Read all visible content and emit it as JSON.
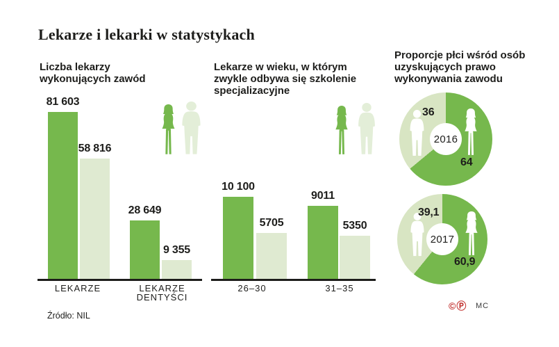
{
  "page": {
    "title": "Lekarze i lekarki w statystykach",
    "source": "Źródło: NIL",
    "copyright_mark": "©",
    "reprint_mark": "Ⓟ",
    "credit": "MC"
  },
  "sections": {
    "chart1_heading": "Liczba lekarzy\nwykonujących zawód",
    "chart2_heading": "Lekarze w wieku, w którym\nzwykle odbywa się szkolenie\nspecjalizacyjne",
    "chart3_heading": "Proporcje płci wśród osób\nuzyskujących prawo\nwykonywania zawodu"
  },
  "colors": {
    "dark_green": "#76b84d",
    "light_green": "#dfead1",
    "donut_light_green": "#d8e5c3",
    "figure_light_green": "#e3eed8",
    "text": "#1d1d1b",
    "red": "#c2312e"
  },
  "chart_data": [
    {
      "type": "bar",
      "title": "Liczba lekarzy wykonujących zawód",
      "categories": [
        "LEKARZE",
        "LEKARZE DENTYŚCI"
      ],
      "series": [
        {
          "name": "kobiety (ciemnozielony)",
          "values": [
            81603,
            28649
          ],
          "labels": [
            "81 603",
            "28 649"
          ]
        },
        {
          "name": "mężczyźni (jasnozielony)",
          "values": [
            58816,
            9355
          ],
          "labels": [
            "58 816",
            "9 355"
          ]
        }
      ],
      "ylim": [
        0,
        85000
      ],
      "grid": false,
      "source": "NIL"
    },
    {
      "type": "bar",
      "title": "Lekarze w wieku, w którym zwykle odbywa się szkolenie specjalizacyjne",
      "categories": [
        "26–30",
        "31–35"
      ],
      "series": [
        {
          "name": "kobiety (ciemnozielony)",
          "values": [
            10100,
            9011
          ],
          "labels": [
            "10 100",
            "9011"
          ]
        },
        {
          "name": "mężczyźni (jasnozielony)",
          "values": [
            5705,
            5350
          ],
          "labels": [
            "5705",
            "5350"
          ]
        }
      ],
      "ylim": [
        0,
        10500
      ],
      "grid": false
    },
    {
      "type": "donut",
      "title": "Proporcje płci wśród osób uzyskujących prawo wykonywania zawodu",
      "rings": [
        {
          "year": "2016",
          "slices": [
            {
              "name": "kobiety (ciemnozielony)",
              "value": 64,
              "label": "64"
            },
            {
              "name": "mężczyźni (jasnozielony)",
              "value": 36,
              "label": "36"
            }
          ]
        },
        {
          "year": "2017",
          "slices": [
            {
              "name": "kobiety (ciemnozielony)",
              "value": 60.9,
              "label": "60,9"
            },
            {
              "name": "mężczyźni (jasnozielony)",
              "value": 39.1,
              "label": "39,1"
            }
          ]
        }
      ]
    }
  ]
}
